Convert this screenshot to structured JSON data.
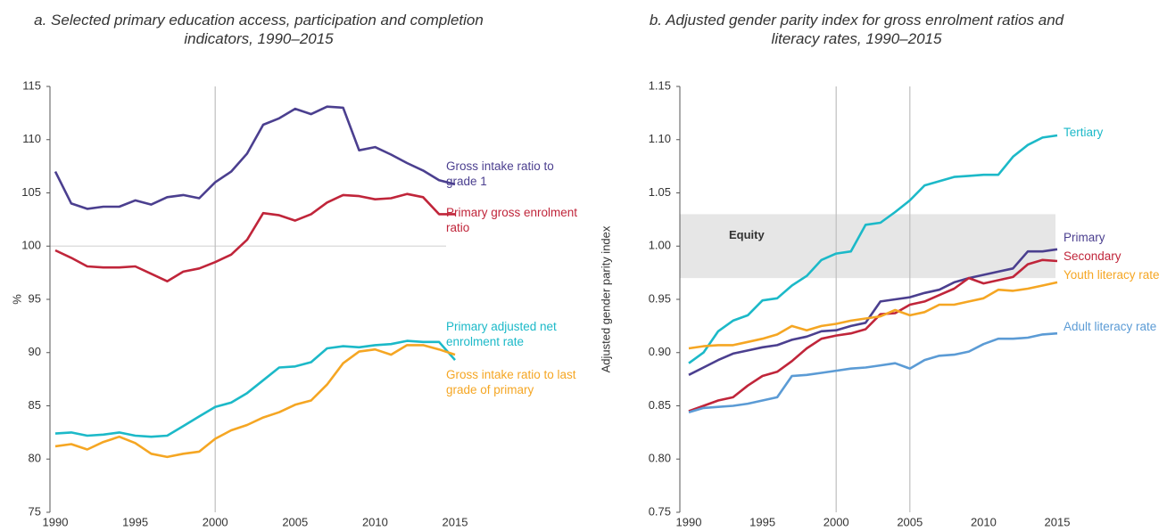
{
  "chart_data": [
    {
      "type": "line",
      "title": "a. Selected primary education access, participation and completion indicators, 1990–2015",
      "ylabel": "%",
      "x": [
        1990,
        1991,
        1992,
        1993,
        1994,
        1995,
        1996,
        1997,
        1998,
        1999,
        2000,
        2001,
        2002,
        2003,
        2004,
        2005,
        2006,
        2007,
        2008,
        2009,
        2010,
        2011,
        2012,
        2013,
        2014,
        2015
      ],
      "xlim": [
        1990,
        2015
      ],
      "xticks": [
        1990,
        1995,
        2000,
        2005,
        2010,
        2015
      ],
      "ylim": [
        75,
        115
      ],
      "yticks": [
        75,
        80,
        85,
        90,
        95,
        100,
        105,
        110,
        115
      ],
      "hlines": [
        100
      ],
      "vlines": [
        2000
      ],
      "series": [
        {
          "name": "Gross intake ratio to grade 1",
          "color": "#4b3f8f",
          "values": [
            107,
            104,
            103.5,
            103.7,
            103.7,
            104.3,
            103.9,
            104.6,
            104.8,
            104.5,
            106,
            107,
            108.7,
            111.4,
            112,
            112.9,
            112.4,
            113.1,
            113,
            109,
            109.3,
            108.6,
            107.8,
            107.1,
            106.2,
            105.8
          ]
        },
        {
          "name": "Primary gross enrolment ratio",
          "color": "#c0253a",
          "values": [
            99.6,
            98.9,
            98.1,
            98,
            98,
            98.1,
            97.4,
            96.7,
            97.6,
            97.9,
            98.5,
            99.2,
            100.6,
            103.1,
            102.9,
            102.4,
            103,
            104.1,
            104.8,
            104.7,
            104.4,
            104.5,
            104.9,
            104.6,
            103,
            103
          ]
        },
        {
          "name": "Primary adjusted net enrolment rate",
          "color": "#1cb9c8",
          "values": [
            82.4,
            82.5,
            82.2,
            82.3,
            82.5,
            82.2,
            82.1,
            82.2,
            83.1,
            84,
            84.9,
            85.3,
            86.2,
            87.4,
            88.6,
            88.7,
            89.1,
            90.4,
            90.6,
            90.5,
            90.7,
            90.8,
            91.1,
            91,
            91,
            89.3
          ]
        },
        {
          "name": "Gross intake ratio to last grade of primary",
          "color": "#f5a623",
          "values": [
            81.2,
            81.4,
            80.9,
            81.6,
            82.1,
            81.5,
            80.5,
            80.2,
            80.5,
            80.7,
            81.9,
            82.7,
            83.2,
            83.9,
            84.4,
            85.1,
            85.5,
            87,
            89,
            90.1,
            90.3,
            89.8,
            90.7,
            90.7,
            90.3,
            89.8
          ]
        }
      ]
    },
    {
      "type": "line",
      "title": "b. Adjusted gender parity index for gross enrolment ratios and literacy rates, 1990–2015",
      "ylabel": "Adjusted gender parity index",
      "x": [
        1990,
        1991,
        1992,
        1993,
        1994,
        1995,
        1996,
        1997,
        1998,
        1999,
        2000,
        2001,
        2002,
        2003,
        2004,
        2005,
        2006,
        2007,
        2008,
        2009,
        2010,
        2011,
        2012,
        2013,
        2014,
        2015
      ],
      "xlim": [
        1990,
        2015
      ],
      "xticks": [
        1990,
        1995,
        2000,
        2005,
        2010,
        2015
      ],
      "ylim": [
        0.75,
        1.15
      ],
      "yticks": [
        0.75,
        {
          "value": 0.8,
          "label": "0.80"
        },
        0.85,
        {
          "value": 0.9,
          "label": "0.90"
        },
        0.95,
        {
          "value": 1,
          "label": "1.00"
        },
        1.05,
        {
          "value": 1.1,
          "label": "1.10"
        },
        1.15
      ],
      "vlines": [
        2000,
        2005
      ],
      "band": {
        "label": "Equity",
        "range": [
          0.97,
          1.03
        ]
      },
      "series": [
        {
          "name": "Tertiary",
          "color": "#1cb9c8",
          "values": [
            0.89,
            0.9,
            0.92,
            0.93,
            0.935,
            0.949,
            0.951,
            0.963,
            0.972,
            0.987,
            0.993,
            0.995,
            1.02,
            1.022,
            1.032,
            1.043,
            1.057,
            1.061,
            1.065,
            1.066,
            1.067,
            1.067,
            1.084,
            1.095,
            1.102,
            1.104
          ]
        },
        {
          "name": "Primary",
          "color": "#4b3f8f",
          "values": [
            0.879,
            0.886,
            0.893,
            0.899,
            0.902,
            0.905,
            0.907,
            0.912,
            0.915,
            0.92,
            0.921,
            0.925,
            0.928,
            0.948,
            0.95,
            0.952,
            0.956,
            0.959,
            0.966,
            0.97,
            0.973,
            0.976,
            0.979,
            0.995,
            0.995,
            0.997
          ]
        },
        {
          "name": "Secondary",
          "color": "#c0253a",
          "values": [
            0.845,
            0.85,
            0.855,
            0.858,
            0.869,
            0.878,
            0.882,
            0.892,
            0.904,
            0.913,
            0.916,
            0.918,
            0.922,
            0.936,
            0.937,
            0.945,
            0.948,
            0.954,
            0.96,
            0.97,
            0.965,
            0.968,
            0.971,
            0.983,
            0.987,
            0.986
          ]
        },
        {
          "name": "Youth literacy rate",
          "color": "#f5a623",
          "values": [
            0.904,
            0.906,
            0.907,
            0.907,
            0.91,
            0.913,
            0.917,
            0.925,
            0.921,
            0.925,
            0.927,
            0.93,
            0.932,
            0.934,
            0.94,
            0.935,
            0.938,
            0.945,
            0.945,
            0.948,
            0.951,
            0.959,
            0.958,
            0.96,
            0.963,
            0.966
          ]
        },
        {
          "name": "Adult literacy rate",
          "color": "#5b9bd5",
          "values": [
            0.844,
            0.848,
            0.849,
            0.85,
            0.852,
            0.855,
            0.858,
            0.878,
            0.879,
            0.881,
            0.883,
            0.885,
            0.886,
            0.888,
            0.89,
            0.885,
            0.893,
            0.897,
            0.898,
            0.901,
            0.908,
            0.913,
            0.913,
            0.914,
            0.917,
            0.918
          ]
        }
      ]
    }
  ]
}
